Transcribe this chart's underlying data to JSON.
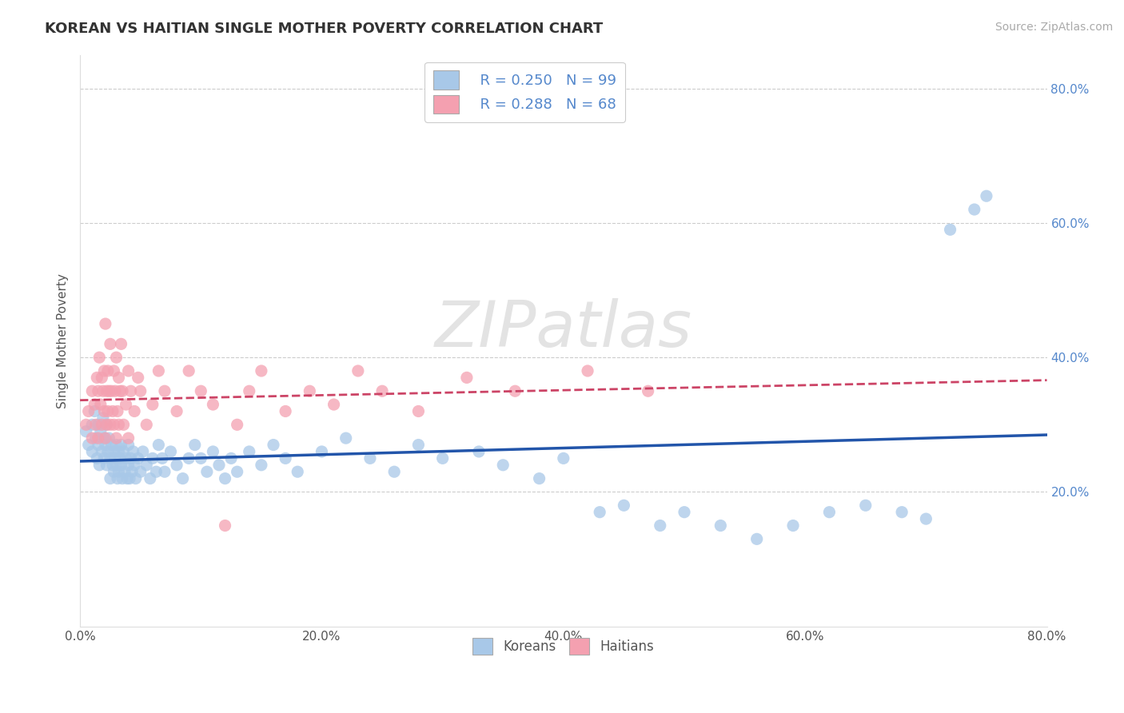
{
  "title": "KOREAN VS HAITIAN SINGLE MOTHER POVERTY CORRELATION CHART",
  "source": "Source: ZipAtlas.com",
  "ylabel": "Single Mother Poverty",
  "xlim": [
    0.0,
    0.8
  ],
  "ylim": [
    0.0,
    0.85
  ],
  "xticks": [
    0.0,
    0.2,
    0.4,
    0.6,
    0.8
  ],
  "yticks": [
    0.2,
    0.4,
    0.6,
    0.8
  ],
  "xtick_labels": [
    "0.0%",
    "20.0%",
    "40.0%",
    "60.0%",
    "80.0%"
  ],
  "ytick_labels": [
    "20.0%",
    "40.0%",
    "60.0%",
    "80.0%"
  ],
  "korean_color": "#a8c8e8",
  "haitian_color": "#f4a0b0",
  "korean_line_color": "#2255aa",
  "haitian_line_color": "#cc4466",
  "R_korean": 0.25,
  "N_korean": 99,
  "R_haitian": 0.288,
  "N_haitian": 68,
  "watermark": "ZIPatlas",
  "legend_labels": [
    "Koreans",
    "Haitians"
  ],
  "background_color": "#ffffff",
  "grid_color": "#cccccc",
  "korean_scatter": [
    [
      0.005,
      0.29
    ],
    [
      0.007,
      0.27
    ],
    [
      0.01,
      0.3
    ],
    [
      0.01,
      0.26
    ],
    [
      0.012,
      0.32
    ],
    [
      0.013,
      0.28
    ],
    [
      0.014,
      0.25
    ],
    [
      0.015,
      0.3
    ],
    [
      0.015,
      0.27
    ],
    [
      0.016,
      0.24
    ],
    [
      0.017,
      0.29
    ],
    [
      0.018,
      0.26
    ],
    [
      0.019,
      0.31
    ],
    [
      0.02,
      0.28
    ],
    [
      0.02,
      0.25
    ],
    [
      0.021,
      0.27
    ],
    [
      0.022,
      0.24
    ],
    [
      0.022,
      0.3
    ],
    [
      0.023,
      0.26
    ],
    [
      0.024,
      0.28
    ],
    [
      0.025,
      0.25
    ],
    [
      0.025,
      0.22
    ],
    [
      0.026,
      0.27
    ],
    [
      0.027,
      0.24
    ],
    [
      0.028,
      0.26
    ],
    [
      0.028,
      0.23
    ],
    [
      0.029,
      0.25
    ],
    [
      0.03,
      0.27
    ],
    [
      0.03,
      0.24
    ],
    [
      0.031,
      0.22
    ],
    [
      0.032,
      0.26
    ],
    [
      0.032,
      0.23
    ],
    [
      0.033,
      0.25
    ],
    [
      0.034,
      0.27
    ],
    [
      0.034,
      0.24
    ],
    [
      0.035,
      0.22
    ],
    [
      0.036,
      0.26
    ],
    [
      0.037,
      0.23
    ],
    [
      0.038,
      0.25
    ],
    [
      0.039,
      0.22
    ],
    [
      0.04,
      0.27
    ],
    [
      0.04,
      0.24
    ],
    [
      0.041,
      0.22
    ],
    [
      0.042,
      0.25
    ],
    [
      0.043,
      0.23
    ],
    [
      0.044,
      0.26
    ],
    [
      0.045,
      0.24
    ],
    [
      0.046,
      0.22
    ],
    [
      0.048,
      0.25
    ],
    [
      0.05,
      0.23
    ],
    [
      0.052,
      0.26
    ],
    [
      0.055,
      0.24
    ],
    [
      0.058,
      0.22
    ],
    [
      0.06,
      0.25
    ],
    [
      0.063,
      0.23
    ],
    [
      0.065,
      0.27
    ],
    [
      0.068,
      0.25
    ],
    [
      0.07,
      0.23
    ],
    [
      0.075,
      0.26
    ],
    [
      0.08,
      0.24
    ],
    [
      0.085,
      0.22
    ],
    [
      0.09,
      0.25
    ],
    [
      0.095,
      0.27
    ],
    [
      0.1,
      0.25
    ],
    [
      0.105,
      0.23
    ],
    [
      0.11,
      0.26
    ],
    [
      0.115,
      0.24
    ],
    [
      0.12,
      0.22
    ],
    [
      0.125,
      0.25
    ],
    [
      0.13,
      0.23
    ],
    [
      0.14,
      0.26
    ],
    [
      0.15,
      0.24
    ],
    [
      0.16,
      0.27
    ],
    [
      0.17,
      0.25
    ],
    [
      0.18,
      0.23
    ],
    [
      0.2,
      0.26
    ],
    [
      0.22,
      0.28
    ],
    [
      0.24,
      0.25
    ],
    [
      0.26,
      0.23
    ],
    [
      0.28,
      0.27
    ],
    [
      0.3,
      0.25
    ],
    [
      0.33,
      0.26
    ],
    [
      0.35,
      0.24
    ],
    [
      0.38,
      0.22
    ],
    [
      0.4,
      0.25
    ],
    [
      0.43,
      0.17
    ],
    [
      0.45,
      0.18
    ],
    [
      0.48,
      0.15
    ],
    [
      0.5,
      0.17
    ],
    [
      0.53,
      0.15
    ],
    [
      0.56,
      0.13
    ],
    [
      0.59,
      0.15
    ],
    [
      0.62,
      0.17
    ],
    [
      0.65,
      0.18
    ],
    [
      0.68,
      0.17
    ],
    [
      0.7,
      0.16
    ],
    [
      0.72,
      0.59
    ],
    [
      0.74,
      0.62
    ],
    [
      0.75,
      0.64
    ]
  ],
  "haitian_scatter": [
    [
      0.005,
      0.3
    ],
    [
      0.007,
      0.32
    ],
    [
      0.01,
      0.28
    ],
    [
      0.01,
      0.35
    ],
    [
      0.012,
      0.33
    ],
    [
      0.013,
      0.3
    ],
    [
      0.014,
      0.37
    ],
    [
      0.015,
      0.28
    ],
    [
      0.015,
      0.35
    ],
    [
      0.016,
      0.4
    ],
    [
      0.017,
      0.33
    ],
    [
      0.018,
      0.3
    ],
    [
      0.018,
      0.37
    ],
    [
      0.019,
      0.35
    ],
    [
      0.02,
      0.32
    ],
    [
      0.02,
      0.38
    ],
    [
      0.021,
      0.28
    ],
    [
      0.021,
      0.45
    ],
    [
      0.022,
      0.35
    ],
    [
      0.022,
      0.3
    ],
    [
      0.023,
      0.32
    ],
    [
      0.023,
      0.38
    ],
    [
      0.024,
      0.35
    ],
    [
      0.025,
      0.3
    ],
    [
      0.025,
      0.42
    ],
    [
      0.026,
      0.35
    ],
    [
      0.027,
      0.32
    ],
    [
      0.028,
      0.38
    ],
    [
      0.028,
      0.3
    ],
    [
      0.029,
      0.35
    ],
    [
      0.03,
      0.4
    ],
    [
      0.03,
      0.28
    ],
    [
      0.031,
      0.32
    ],
    [
      0.032,
      0.37
    ],
    [
      0.032,
      0.3
    ],
    [
      0.033,
      0.35
    ],
    [
      0.034,
      0.42
    ],
    [
      0.035,
      0.35
    ],
    [
      0.036,
      0.3
    ],
    [
      0.038,
      0.33
    ],
    [
      0.04,
      0.38
    ],
    [
      0.04,
      0.28
    ],
    [
      0.042,
      0.35
    ],
    [
      0.045,
      0.32
    ],
    [
      0.048,
      0.37
    ],
    [
      0.05,
      0.35
    ],
    [
      0.055,
      0.3
    ],
    [
      0.06,
      0.33
    ],
    [
      0.065,
      0.38
    ],
    [
      0.07,
      0.35
    ],
    [
      0.08,
      0.32
    ],
    [
      0.09,
      0.38
    ],
    [
      0.1,
      0.35
    ],
    [
      0.11,
      0.33
    ],
    [
      0.12,
      0.15
    ],
    [
      0.13,
      0.3
    ],
    [
      0.14,
      0.35
    ],
    [
      0.15,
      0.38
    ],
    [
      0.17,
      0.32
    ],
    [
      0.19,
      0.35
    ],
    [
      0.21,
      0.33
    ],
    [
      0.23,
      0.38
    ],
    [
      0.25,
      0.35
    ],
    [
      0.28,
      0.32
    ],
    [
      0.32,
      0.37
    ],
    [
      0.36,
      0.35
    ],
    [
      0.42,
      0.38
    ],
    [
      0.47,
      0.35
    ]
  ]
}
